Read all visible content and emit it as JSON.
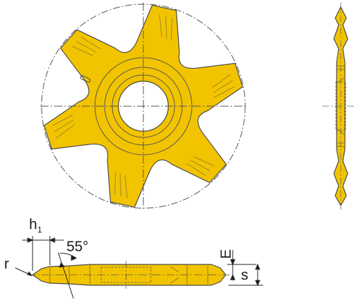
{
  "drawing": {
    "labels": {
      "h": "h",
      "h_sub": "1",
      "angle": "55°",
      "r": "r",
      "E": "E",
      "s": "s"
    },
    "colors": {
      "insert_fill": "#f2c400",
      "outline": "#4a4a4a",
      "dim_line": "#222222",
      "center_line": "#555555",
      "background": "#ffffff"
    },
    "views": [
      "front-view",
      "side-view",
      "bottom-view"
    ]
  }
}
